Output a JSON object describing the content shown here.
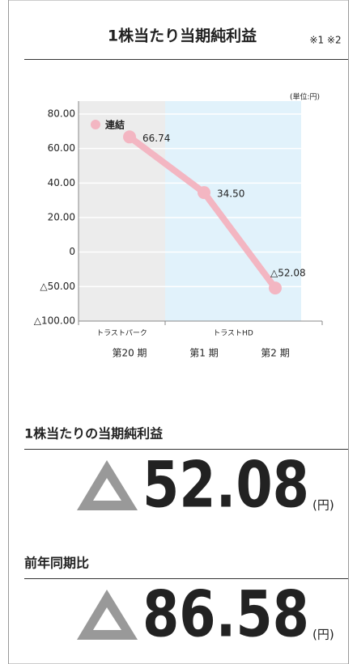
{
  "header": {
    "title": "1株当たり当期純利益",
    "note": "※1 ※2"
  },
  "chart_data": {
    "type": "line",
    "unit": "(単位:円)",
    "categories": [
      "第20 期",
      "第1 期",
      "第2 期"
    ],
    "groups": [
      {
        "label": "トラストパーク",
        "color": "#ececec"
      },
      {
        "label": "トラストHD",
        "color": "#e1f2fb"
      }
    ],
    "series": [
      {
        "name": "連結",
        "color": "#f3b6c2",
        "values": [
          66.74,
          34.5,
          -52.08
        ],
        "value_labels": [
          "66.74",
          "34.50",
          "△52.08"
        ]
      }
    ],
    "ylim": [
      -100,
      80
    ],
    "yticks": [
      {
        "value": 80,
        "label": "80.00"
      },
      {
        "value": 60,
        "label": "60.00"
      },
      {
        "value": 40,
        "label": "40.00"
      },
      {
        "value": 20,
        "label": "20.00"
      },
      0,
      {
        "value": -50,
        "label": "△50.00"
      },
      {
        "value": -100,
        "label": "△100.00"
      }
    ]
  },
  "summary": [
    {
      "label": "1株当たりの当期純利益",
      "value": "52.08",
      "unit": "(円)"
    },
    {
      "label": "前年同期比",
      "value": "86.58",
      "unit": "(円)"
    }
  ]
}
